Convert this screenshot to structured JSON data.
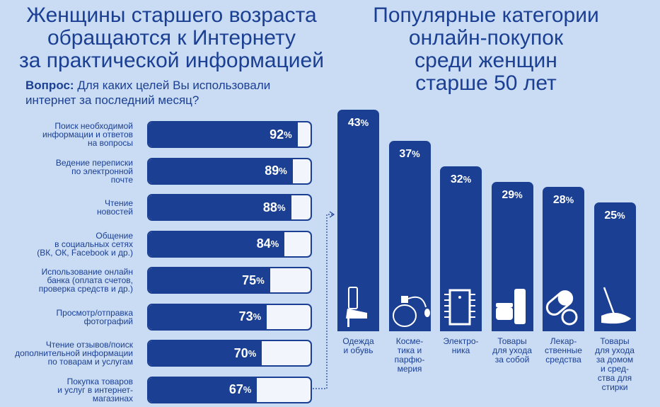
{
  "left_title": "Женщины старшего возраста\nобращаются к Интернету\nза практической информацией",
  "right_title": "Популярные категории\nонлайн-покупок\nсреди женщин\nстарше 50 лет",
  "question_label": "Вопрос:",
  "question_text": "Для каких целей Вы использовали интернет за последний месяц?",
  "colors": {
    "navy": "#1b3f92",
    "background": "#c9dcf4",
    "track": "#f2f6fc"
  },
  "chart_data": [
    {
      "type": "bar",
      "orientation": "horizontal",
      "categories": [
        "Поиск необходимой\nинформации и ответов\nна вопросы",
        "Ведение переписки\nпо электронной\nпочте",
        "Чтение\nновостей",
        "Общение\nв социальных сетях\n(ВК, ОК, Facebook и др.)",
        "Использование онлайн\nбанка (оплата счетов,\nпроверка средств и др.)",
        "Просмотр/отправка\nфотографий",
        "Чтение отзывов/поиск\nдополнительной информации\nпо товарам и услугам",
        "Покупка товаров\nи услуг в интернет-\nмагазинах"
      ],
      "values": [
        92,
        89,
        88,
        84,
        75,
        73,
        70,
        67
      ],
      "unit": "%",
      "xlim": [
        0,
        100
      ]
    },
    {
      "type": "bar",
      "orientation": "vertical",
      "categories": [
        "Одежда\nи обувь",
        "Косме-\nтика и\nпарфю-\nмерия",
        "Электро-\nника",
        "Товары\nдля ухода\nза собой",
        "Лекар-\nственные\nсредства",
        "Товары\nдля ухода\nза домом\nи сред-\nства для\nстирки"
      ],
      "values": [
        43,
        37,
        32,
        29,
        28,
        25
      ],
      "unit": "%",
      "icons": [
        "shoe-icon",
        "perfume-icon",
        "chip-icon",
        "cream-icon",
        "pill-icon",
        "mop-icon"
      ]
    }
  ]
}
